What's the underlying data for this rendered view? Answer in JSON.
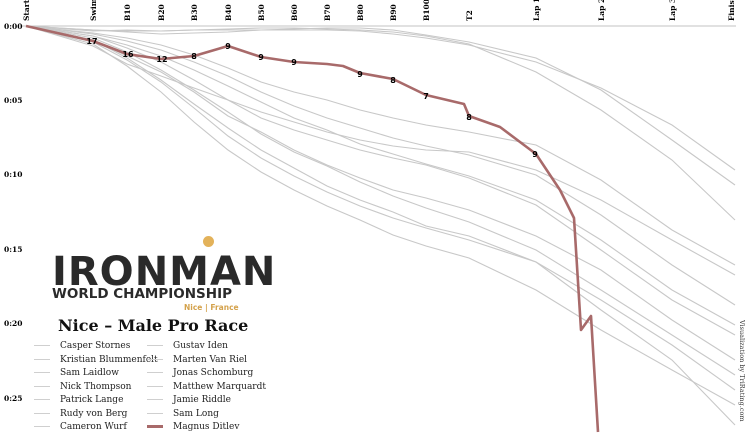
{
  "chart_data": {
    "type": "line",
    "title": "Nice – Male Pro Race",
    "x_labels": [
      "Start",
      "Swim",
      "B10",
      "B20",
      "B30",
      "B40",
      "B50",
      "B60",
      "B70",
      "B80",
      "B90",
      "B100",
      "T2",
      "Lap 1",
      "Lap 2",
      "Lap 3",
      "Finish"
    ],
    "y_labels": [
      "0:00",
      "0:05",
      "0:10",
      "0:15",
      "0:20",
      "0:25"
    ],
    "highlight": {
      "name": "Magnus Ditlev",
      "color": "#a86a6a",
      "ranks": [
        {
          "x": "Swim",
          "rank": "17"
        },
        {
          "x": "B10",
          "rank": "16"
        },
        {
          "x": "B20",
          "rank": "12"
        },
        {
          "x": "B30",
          "rank": "8"
        },
        {
          "x": "B40",
          "rank": "9"
        },
        {
          "x": "B50",
          "rank": "9"
        },
        {
          "x": "B60",
          "rank": "9"
        },
        {
          "x": "B80",
          "rank": "9"
        },
        {
          "x": "B90",
          "rank": "8"
        },
        {
          "x": "B100",
          "rank": "7"
        },
        {
          "x": "T2",
          "rank": "8"
        },
        {
          "x": "Lap 1",
          "rank": "9"
        }
      ]
    },
    "legend": [
      "Casper Stornes",
      "Kristian Blummenfelt",
      "Sam Laidlow",
      "Nick Thompson",
      "Patrick Lange",
      "Rudy von Berg",
      "Cameron Wurf",
      "Gustav Iden",
      "Marten Van Riel",
      "Jonas Schomburg",
      "Matthew Marquardt",
      "Jamie Riddle",
      "Sam Long",
      "Magnus Ditlev"
    ]
  },
  "logo": {
    "word": "IRONMAN",
    "subtitle": "WORLD CHAMPIONSHIP",
    "location": "Nice | France"
  },
  "credit": "Visualization by TriRating.com",
  "colors": {
    "gray_line": "#c8c8c8",
    "highlight": "#a86a6a"
  }
}
